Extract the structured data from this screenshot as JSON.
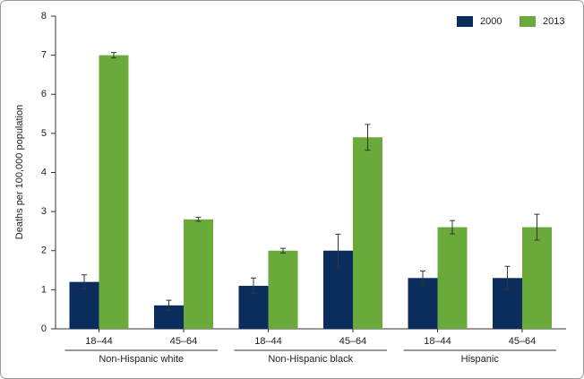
{
  "chart_data": {
    "type": "bar",
    "y_label": "Deaths per 100,000 population",
    "groups": [
      {
        "label": "Non-Hispanic white",
        "categories": [
          "18–44",
          "45–64"
        ]
      },
      {
        "label": "Non-Hispanic black",
        "categories": [
          "18–44",
          "45–64"
        ]
      },
      {
        "label": "Hispanic",
        "categories": [
          "18–44",
          "45–64"
        ]
      }
    ],
    "series": [
      {
        "name": "2000",
        "color": "#0b2d5e",
        "values": [
          1.2,
          0.6,
          1.1,
          2.0,
          1.3,
          1.3
        ],
        "errors": [
          0.18,
          0.13,
          0.2,
          0.42,
          0.18,
          0.3
        ]
      },
      {
        "name": "2013",
        "color": "#6aaa3a",
        "values": [
          7.0,
          2.8,
          2.0,
          4.9,
          2.6,
          2.6
        ],
        "errors": [
          0.07,
          0.05,
          0.06,
          0.33,
          0.17,
          0.33
        ]
      }
    ],
    "ylim": [
      0,
      8
    ],
    "yticks": [
      0,
      1,
      2,
      3,
      4,
      5,
      6,
      7,
      8
    ],
    "legend": "top-right"
  }
}
